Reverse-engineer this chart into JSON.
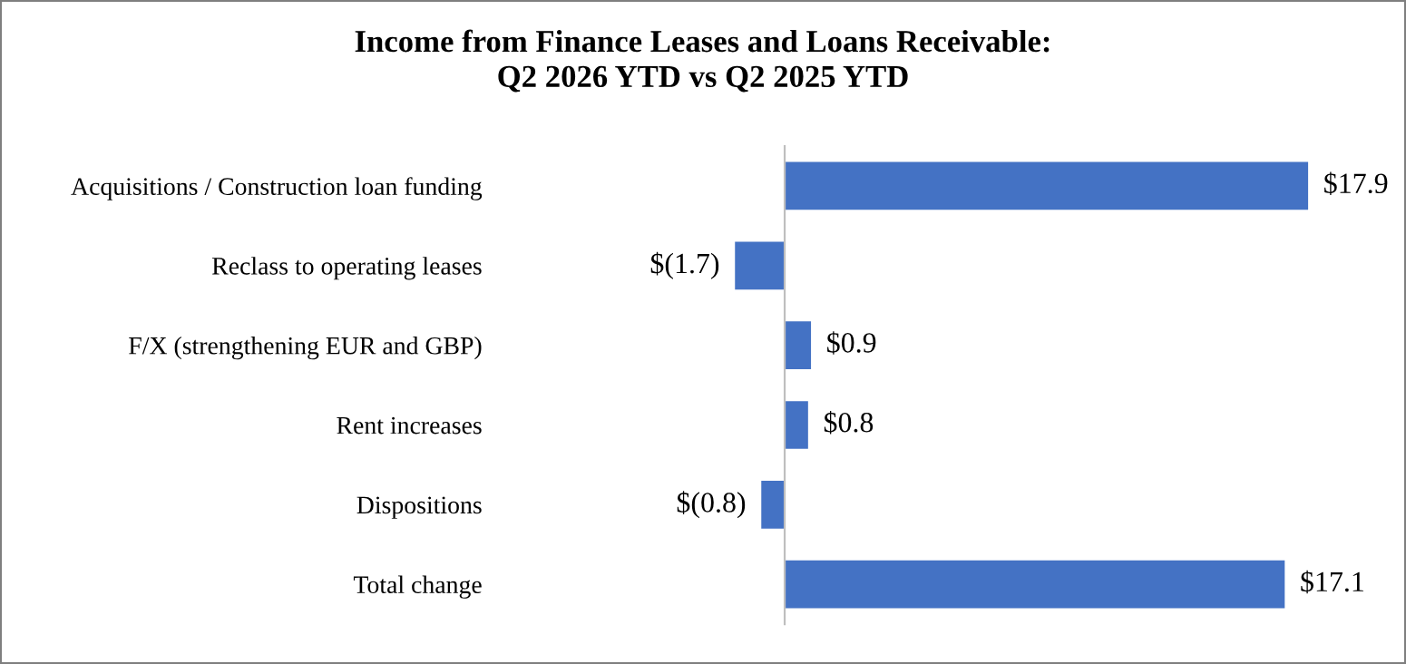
{
  "chart_data": {
    "type": "bar",
    "orientation": "horizontal",
    "title": "Income from Finance Leases and Loans Receivable:\nQ2 2026 YTD vs Q2 2025 YTD",
    "categories": [
      "Acquisitions / Construction loan funding",
      "Reclass to operating leases",
      "F/X (strengthening EUR and GBP)",
      "Rent increases",
      "Dispositions",
      "Total change"
    ],
    "values": [
      17.9,
      -1.7,
      0.9,
      0.8,
      -0.8,
      17.1
    ],
    "value_labels": [
      "$17.9",
      "$(1.7)",
      "$0.9",
      "$0.8",
      "$(0.8)",
      "$17.1"
    ],
    "color": "#4472c4",
    "grid": false,
    "legend": false
  }
}
